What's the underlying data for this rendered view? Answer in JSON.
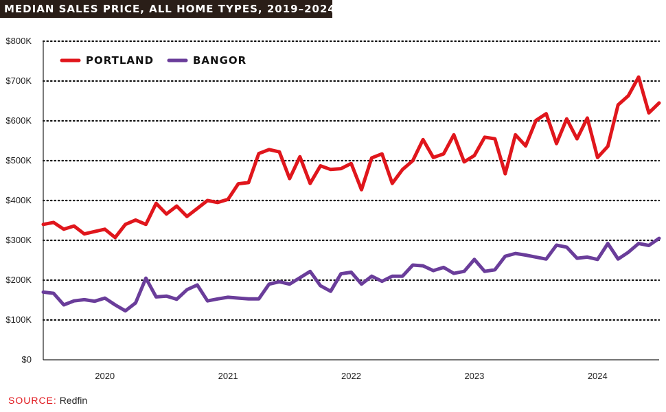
{
  "chart_data": {
    "type": "line",
    "title": "MEDIAN SALES PRICE, ALL HOME TYPES, 2019–2024",
    "xlabel": "",
    "ylabel": "",
    "ylim": [
      0,
      800000
    ],
    "yticks": [
      0,
      100000,
      200000,
      300000,
      400000,
      500000,
      600000,
      700000,
      800000
    ],
    "ytick_labels": [
      "$0",
      "$100K",
      "$200K",
      "$300K",
      "$400K",
      "$500K",
      "$600K",
      "$700K",
      "$800K"
    ],
    "x_start": "2019-07",
    "x_end": "2024-07",
    "xtick_labels": [
      "2020",
      "2021",
      "2022",
      "2023",
      "2024"
    ],
    "xtick_positions": [
      "2020-01",
      "2021-01",
      "2022-01",
      "2023-01",
      "2024-01"
    ],
    "grid": "horizontal dotted",
    "legend_position": "top-left",
    "series": [
      {
        "name": "PORTLAND",
        "color": "#e0161c",
        "x": [
          "2019-07",
          "2019-08",
          "2019-09",
          "2019-10",
          "2019-11",
          "2019-12",
          "2020-01",
          "2020-02",
          "2020-03",
          "2020-04",
          "2020-05",
          "2020-06",
          "2020-07",
          "2020-08",
          "2020-09",
          "2020-10",
          "2020-11",
          "2020-12",
          "2021-01",
          "2021-02",
          "2021-03",
          "2021-04",
          "2021-05",
          "2021-06",
          "2021-07",
          "2021-08",
          "2021-09",
          "2021-10",
          "2021-11",
          "2021-12",
          "2022-01",
          "2022-02",
          "2022-03",
          "2022-04",
          "2022-05",
          "2022-06",
          "2022-07",
          "2022-08",
          "2022-09",
          "2022-10",
          "2022-11",
          "2022-12",
          "2023-01",
          "2023-02",
          "2023-03",
          "2023-04",
          "2023-05",
          "2023-06",
          "2023-07",
          "2023-08",
          "2023-09",
          "2023-10",
          "2023-11",
          "2023-12",
          "2024-01",
          "2024-02",
          "2024-03",
          "2024-04",
          "2024-05",
          "2024-06",
          "2024-07"
        ],
        "values": [
          340000,
          345000,
          328000,
          336000,
          316000,
          322000,
          328000,
          307000,
          340000,
          351000,
          340000,
          393000,
          366000,
          386000,
          360000,
          380000,
          400000,
          395000,
          403000,
          442000,
          445000,
          518000,
          528000,
          522000,
          455000,
          510000,
          443000,
          487000,
          478000,
          480000,
          493000,
          427000,
          507000,
          517000,
          443000,
          478000,
          500000,
          553000,
          508000,
          517000,
          565000,
          497000,
          513000,
          559000,
          555000,
          467000,
          565000,
          537000,
          601000,
          618000,
          543000,
          605000,
          555000,
          607000,
          508000,
          536000,
          640000,
          663000,
          710000,
          620000,
          645000
        ]
      },
      {
        "name": "BANGOR",
        "color": "#6a3d9a",
        "x": [
          "2019-07",
          "2019-08",
          "2019-09",
          "2019-10",
          "2019-11",
          "2019-12",
          "2020-01",
          "2020-02",
          "2020-03",
          "2020-04",
          "2020-05",
          "2020-06",
          "2020-07",
          "2020-08",
          "2020-09",
          "2020-10",
          "2020-11",
          "2020-12",
          "2021-01",
          "2021-02",
          "2021-03",
          "2021-04",
          "2021-05",
          "2021-06",
          "2021-07",
          "2021-08",
          "2021-09",
          "2021-10",
          "2021-11",
          "2021-12",
          "2022-01",
          "2022-02",
          "2022-03",
          "2022-04",
          "2022-05",
          "2022-06",
          "2022-07",
          "2022-08",
          "2022-09",
          "2022-10",
          "2022-11",
          "2022-12",
          "2023-01",
          "2023-02",
          "2023-03",
          "2023-04",
          "2023-05",
          "2023-06",
          "2023-07",
          "2023-08",
          "2023-09",
          "2023-10",
          "2023-11",
          "2023-12",
          "2024-01",
          "2024-02",
          "2024-03",
          "2024-04",
          "2024-05",
          "2024-06",
          "2024-07"
        ],
        "values": [
          170000,
          167000,
          138000,
          148000,
          151000,
          147000,
          155000,
          138000,
          123000,
          143000,
          205000,
          158000,
          160000,
          152000,
          176000,
          188000,
          148000,
          153000,
          157000,
          155000,
          153000,
          153000,
          190000,
          196000,
          190000,
          206000,
          222000,
          186000,
          172000,
          216000,
          220000,
          190000,
          210000,
          197000,
          210000,
          210000,
          238000,
          236000,
          224000,
          232000,
          217000,
          222000,
          252000,
          222000,
          226000,
          260000,
          267000,
          263000,
          258000,
          253000,
          288000,
          283000,
          255000,
          258000,
          252000,
          292000,
          253000,
          270000,
          292000,
          287000,
          305000
        ]
      }
    ]
  },
  "source": {
    "label": "SOURCE:",
    "value": "Redfin"
  }
}
